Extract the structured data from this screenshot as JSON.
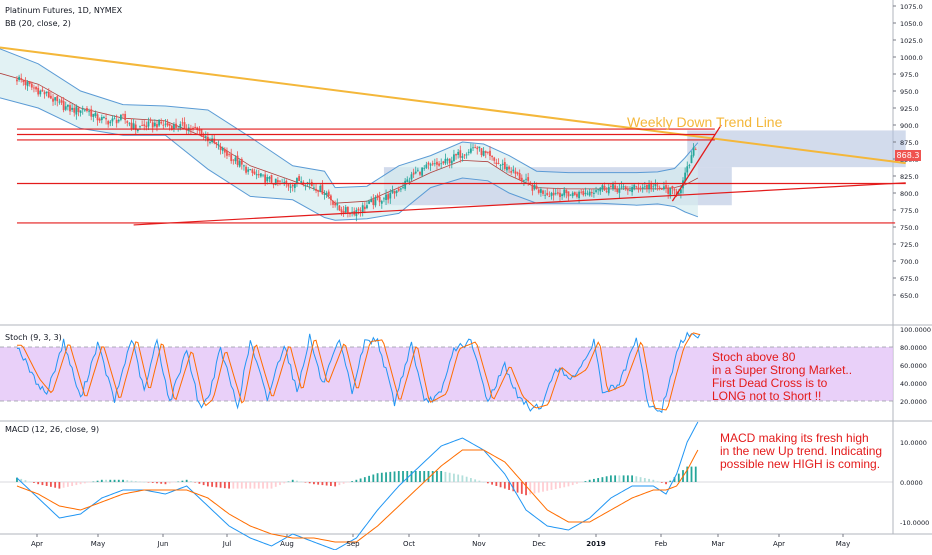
{
  "header": {
    "symbol": "Platinum Futures, 1D, NYMEX",
    "indicator": "BB (20, close, 2)"
  },
  "panes": {
    "stoch": {
      "title": "Stoch (9, 3, 3)"
    },
    "macd": {
      "title": "MACD (12, 26, close, 9)"
    }
  },
  "annotations": {
    "trend": "Weekly Down Trend Line",
    "stoch_lines": [
      "Stoch above 80",
      "in a Super Strong Market..",
      "First Dead Cross is to",
      "LONG not to Short !!"
    ],
    "macd_lines": [
      "MACD making its fresh high",
      "in the new Up trend. Indicating",
      "possible new HIGH is coming."
    ]
  },
  "price_badge": "868.3",
  "colors": {
    "up": "#26a69a",
    "down": "#ef5350",
    "bb": "#5b9bd5",
    "trend": "#f4b73a",
    "line": "#e31b1b",
    "box": "#b4c3e0",
    "stoch_fill": "#e4c4f7"
  },
  "chart_data": [
    {
      "type": "candlestick",
      "title": "Platinum Futures, 1D, NYMEX",
      "ylim": [
        625,
        1075
      ],
      "y_ticks": [
        "1075.0",
        "1050.0",
        "1025.0",
        "1000.0",
        "975.0",
        "950.0",
        "925.0",
        "900.0",
        "875.0",
        "850.0",
        "825.0",
        "800.0",
        "775.0",
        "750.0",
        "725.0",
        "700.0",
        "675.0",
        "650.0"
      ],
      "x_ticks": [
        "Apr",
        "May",
        "Jun",
        "Jul",
        "Aug",
        "Sep",
        "Oct",
        "Nov",
        "Dec",
        "2019",
        "Feb",
        "Mar",
        "Apr",
        "May"
      ],
      "close_path": [
        [
          1,
          968
        ],
        [
          7,
          955
        ],
        [
          14,
          945
        ],
        [
          20,
          930
        ],
        [
          26,
          922
        ],
        [
          32,
          924
        ],
        [
          38,
          910
        ],
        [
          44,
          905
        ],
        [
          50,
          910
        ],
        [
          56,
          895
        ],
        [
          62,
          900
        ],
        [
          68,
          902
        ],
        [
          74,
          898
        ],
        [
          80,
          897
        ],
        [
          86,
          890
        ],
        [
          92,
          875
        ],
        [
          98,
          860
        ],
        [
          104,
          845
        ],
        [
          110,
          830
        ],
        [
          116,
          822
        ],
        [
          122,
          815
        ],
        [
          128,
          812
        ],
        [
          134,
          820
        ],
        [
          140,
          810
        ],
        [
          146,
          800
        ],
        [
          152,
          775
        ],
        [
          158,
          772
        ],
        [
          164,
          780
        ],
        [
          170,
          790
        ],
        [
          176,
          796
        ],
        [
          182,
          812
        ],
        [
          188,
          830
        ],
        [
          194,
          838
        ],
        [
          200,
          842
        ],
        [
          206,
          852
        ],
        [
          212,
          862
        ],
        [
          216,
          868
        ],
        [
          220,
          858
        ],
        [
          226,
          844
        ],
        [
          232,
          836
        ],
        [
          238,
          820
        ],
        [
          244,
          806
        ],
        [
          250,
          800
        ],
        [
          256,
          800
        ],
        [
          262,
          798
        ],
        [
          268,
          800
        ],
        [
          274,
          808
        ],
        [
          280,
          808
        ],
        [
          286,
          805
        ],
        [
          292,
          808
        ],
        [
          298,
          810
        ],
        [
          302,
          808
        ],
        [
          306,
          805
        ],
        [
          309,
          801
        ],
        [
          312,
          804
        ],
        [
          314,
          816
        ],
        [
          316,
          834
        ],
        [
          318,
          852
        ],
        [
          319,
          862
        ],
        [
          320,
          868.3
        ]
      ],
      "bb_upper": [
        [
          -8,
          1012
        ],
        [
          10,
          990
        ],
        [
          30,
          950
        ],
        [
          50,
          930
        ],
        [
          70,
          928
        ],
        [
          90,
          922
        ],
        [
          110,
          882
        ],
        [
          130,
          840
        ],
        [
          145,
          832
        ],
        [
          150,
          808
        ],
        [
          165,
          810
        ],
        [
          180,
          840
        ],
        [
          195,
          855
        ],
        [
          210,
          875
        ],
        [
          220,
          872
        ],
        [
          232,
          855
        ],
        [
          245,
          832
        ],
        [
          260,
          830
        ],
        [
          275,
          830
        ],
        [
          292,
          830
        ],
        [
          302,
          831
        ],
        [
          310,
          836
        ],
        [
          315,
          852
        ],
        [
          321,
          874
        ]
      ],
      "bb_lower": [
        [
          -8,
          940
        ],
        [
          10,
          925
        ],
        [
          30,
          895
        ],
        [
          50,
          885
        ],
        [
          70,
          885
        ],
        [
          90,
          835
        ],
        [
          110,
          795
        ],
        [
          130,
          790
        ],
        [
          145,
          764
        ],
        [
          150,
          760
        ],
        [
          165,
          762
        ],
        [
          180,
          770
        ],
        [
          195,
          808
        ],
        [
          210,
          822
        ],
        [
          222,
          818
        ],
        [
          232,
          800
        ],
        [
          245,
          785
        ],
        [
          260,
          785
        ],
        [
          275,
          785
        ],
        [
          292,
          782
        ],
        [
          302,
          784
        ],
        [
          310,
          780
        ],
        [
          315,
          772
        ],
        [
          321,
          765
        ]
      ],
      "bb_basis": [
        [
          -8,
          976
        ],
        [
          10,
          960
        ],
        [
          30,
          925
        ],
        [
          50,
          910
        ],
        [
          70,
          906
        ],
        [
          90,
          880
        ],
        [
          110,
          840
        ],
        [
          130,
          818
        ],
        [
          145,
          800
        ],
        [
          150,
          785
        ],
        [
          165,
          788
        ],
        [
          180,
          808
        ],
        [
          195,
          830
        ],
        [
          210,
          848
        ],
        [
          222,
          846
        ],
        [
          232,
          826
        ],
        [
          245,
          808
        ],
        [
          260,
          806
        ],
        [
          275,
          806
        ],
        [
          292,
          806
        ],
        [
          302,
          806
        ],
        [
          310,
          808
        ],
        [
          315,
          812
        ],
        [
          321,
          822
        ]
      ],
      "trend_line": [
        [
          -8,
          1014
        ],
        [
          419,
          844
        ]
      ],
      "support_lines": [
        {
          "x": [
            0,
            414
          ],
          "y": [
            756,
            756
          ]
        },
        {
          "x": [
            55,
            419
          ],
          "y": [
            753,
            815
          ]
        },
        {
          "x": [
            0,
            419
          ],
          "y": [
            814,
            814
          ]
        }
      ],
      "resistance_lines": [
        {
          "x": [
            0,
            329
          ],
          "y": [
            894,
            894
          ]
        },
        {
          "x": [
            0,
            329
          ],
          "y": [
            878,
            878
          ]
        },
        {
          "x": [
            0,
            329
          ],
          "y": [
            886,
            886
          ]
        }
      ],
      "breakout_line": [
        [
          309,
          788
        ],
        [
          332,
          900
        ]
      ],
      "range_boxes": [
        {
          "x": [
            173,
            337
          ],
          "y": [
            782,
            838
          ]
        },
        {
          "x": [
            316,
            419
          ],
          "y": [
            838,
            892
          ]
        }
      ]
    },
    {
      "type": "line",
      "title": "Stoch (9, 3, 3)",
      "ylim": [
        0,
        100
      ],
      "y_ticks": [
        "100.0000",
        "80.0000",
        "60.0000",
        "40.0000",
        "20.0000"
      ],
      "bands": [
        20,
        80
      ],
      "pivots": [
        [
          0,
          82
        ],
        [
          8,
          45
        ],
        [
          14,
          28
        ],
        [
          22,
          86
        ],
        [
          30,
          22
        ],
        [
          38,
          84
        ],
        [
          46,
          20
        ],
        [
          54,
          90
        ],
        [
          60,
          30
        ],
        [
          66,
          88
        ],
        [
          72,
          18
        ],
        [
          80,
          78
        ],
        [
          86,
          14
        ],
        [
          90,
          22
        ],
        [
          96,
          78
        ],
        [
          104,
          14
        ],
        [
          110,
          86
        ],
        [
          118,
          22
        ],
        [
          126,
          84
        ],
        [
          132,
          30
        ],
        [
          138,
          92
        ],
        [
          144,
          38
        ],
        [
          152,
          86
        ],
        [
          158,
          30
        ],
        [
          164,
          86
        ],
        [
          170,
          88
        ],
        [
          178,
          18
        ],
        [
          186,
          84
        ],
        [
          192,
          18
        ],
        [
          200,
          28
        ],
        [
          206,
          78
        ],
        [
          214,
          86
        ],
        [
          222,
          20
        ],
        [
          230,
          60
        ],
        [
          236,
          25
        ],
        [
          242,
          12
        ],
        [
          248,
          16
        ],
        [
          254,
          58
        ],
        [
          260,
          46
        ],
        [
          266,
          55
        ],
        [
          272,
          88
        ],
        [
          276,
          30
        ],
        [
          284,
          38
        ],
        [
          292,
          88
        ],
        [
          298,
          12
        ],
        [
          304,
          10
        ],
        [
          308,
          46
        ],
        [
          312,
          80
        ],
        [
          316,
          96
        ],
        [
          322,
          92
        ]
      ]
    },
    {
      "type": "bar",
      "title": "MACD (12, 26, close, 9)",
      "ylim": [
        -12,
        13
      ],
      "y_ticks": [
        "10.0000",
        "0.0000",
        "-10.0000"
      ],
      "macd_pivots": [
        [
          0,
          1
        ],
        [
          10,
          -4
        ],
        [
          20,
          -9
        ],
        [
          30,
          -8
        ],
        [
          40,
          -4
        ],
        [
          50,
          -2
        ],
        [
          60,
          -2
        ],
        [
          70,
          -3
        ],
        [
          80,
          -1
        ],
        [
          90,
          -6
        ],
        [
          100,
          -11
        ],
        [
          110,
          -14
        ],
        [
          120,
          -16
        ],
        [
          130,
          -13
        ],
        [
          140,
          -15
        ],
        [
          150,
          -17
        ],
        [
          160,
          -14
        ],
        [
          170,
          -7
        ],
        [
          180,
          -1
        ],
        [
          190,
          4
        ],
        [
          200,
          9
        ],
        [
          210,
          11
        ],
        [
          220,
          8
        ],
        [
          230,
          2
        ],
        [
          240,
          -7
        ],
        [
          250,
          -11
        ],
        [
          260,
          -12
        ],
        [
          270,
          -9
        ],
        [
          280,
          -4
        ],
        [
          290,
          -1
        ],
        [
          300,
          -1
        ],
        [
          306,
          -3
        ],
        [
          311,
          2
        ],
        [
          316,
          10
        ],
        [
          321,
          15
        ]
      ],
      "signal_pivots": [
        [
          0,
          -1
        ],
        [
          10,
          -3
        ],
        [
          20,
          -6
        ],
        [
          30,
          -7
        ],
        [
          40,
          -5
        ],
        [
          50,
          -3
        ],
        [
          60,
          -2
        ],
        [
          70,
          -2
        ],
        [
          80,
          -2
        ],
        [
          90,
          -4
        ],
        [
          100,
          -8
        ],
        [
          110,
          -11
        ],
        [
          120,
          -13
        ],
        [
          130,
          -14
        ],
        [
          140,
          -14
        ],
        [
          150,
          -15
        ],
        [
          160,
          -15
        ],
        [
          170,
          -11
        ],
        [
          180,
          -6
        ],
        [
          190,
          -1
        ],
        [
          200,
          4
        ],
        [
          210,
          8
        ],
        [
          220,
          8
        ],
        [
          230,
          5
        ],
        [
          240,
          -1
        ],
        [
          250,
          -7
        ],
        [
          260,
          -10
        ],
        [
          270,
          -10
        ],
        [
          280,
          -7
        ],
        [
          290,
          -4
        ],
        [
          300,
          -2
        ],
        [
          306,
          -2
        ],
        [
          311,
          -1
        ],
        [
          316,
          3
        ],
        [
          321,
          8
        ]
      ]
    }
  ]
}
